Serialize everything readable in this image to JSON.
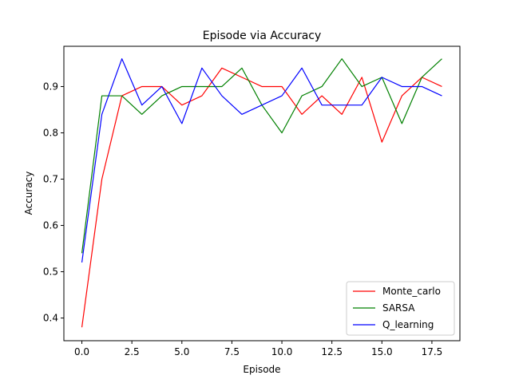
{
  "chart_data": {
    "type": "line",
    "title": "Episode via Accuracy",
    "xlabel": "Episode",
    "ylabel": "Accuracy",
    "xlim": [
      -0.9,
      18.9
    ],
    "ylim": [
      0.351,
      0.987
    ],
    "xticks": [
      0.0,
      2.5,
      5.0,
      7.5,
      10.0,
      12.5,
      15.0,
      17.5
    ],
    "xtick_labels": [
      "0.0",
      "2.5",
      "5.0",
      "7.5",
      "10.0",
      "12.5",
      "15.0",
      "17.5"
    ],
    "yticks": [
      0.4,
      0.5,
      0.6,
      0.7,
      0.8,
      0.9
    ],
    "ytick_labels": [
      "0.4",
      "0.5",
      "0.6",
      "0.7",
      "0.8",
      "0.9"
    ],
    "grid": false,
    "legend_position": "lower-right",
    "x": [
      0,
      1,
      2,
      3,
      4,
      5,
      6,
      7,
      8,
      9,
      10,
      11,
      12,
      13,
      14,
      15,
      16,
      17,
      18
    ],
    "series": [
      {
        "name": "Monte_carlo",
        "color": "#ff0000",
        "values": [
          0.38,
          0.7,
          0.88,
          0.9,
          0.9,
          0.86,
          0.88,
          0.94,
          0.92,
          0.9,
          0.9,
          0.84,
          0.88,
          0.84,
          0.92,
          0.78,
          0.88,
          0.92,
          0.9
        ]
      },
      {
        "name": "SARSA",
        "color": "#008000",
        "values": [
          0.54,
          0.88,
          0.88,
          0.84,
          0.88,
          0.9,
          0.9,
          0.9,
          0.94,
          0.86,
          0.8,
          0.88,
          0.9,
          0.96,
          0.9,
          0.92,
          0.82,
          0.92,
          0.96
        ]
      },
      {
        "name": "Q_learning",
        "color": "#0000ff",
        "values": [
          0.52,
          0.84,
          0.96,
          0.86,
          0.9,
          0.82,
          0.94,
          0.88,
          0.84,
          0.86,
          0.88,
          0.94,
          0.86,
          0.86,
          0.86,
          0.92,
          0.9,
          0.9,
          0.88
        ]
      }
    ]
  }
}
